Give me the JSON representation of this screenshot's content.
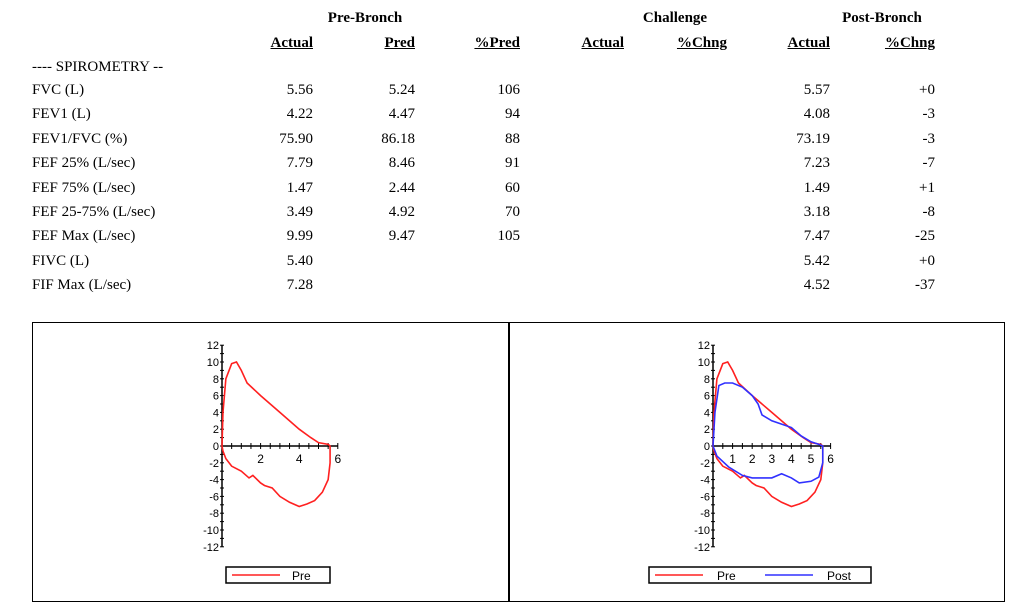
{
  "header": {
    "groups": [
      "Pre-Bronch",
      "Challenge",
      "Post-Bronch"
    ],
    "columns": [
      "Actual",
      "Pred",
      "%Pred",
      "Actual",
      "%Chng",
      "Actual",
      "%Chng"
    ]
  },
  "section_label": "---- SPIROMETRY --",
  "rows": [
    {
      "label": "FVC (L)",
      "cells": [
        "5.56",
        "5.24",
        "106",
        "",
        "",
        "5.57",
        "+0"
      ]
    },
    {
      "label": "FEV1 (L)",
      "cells": [
        "4.22",
        "4.47",
        "94",
        "",
        "",
        "4.08",
        "-3"
      ]
    },
    {
      "label": "FEV1/FVC (%)",
      "cells": [
        "75.90",
        "86.18",
        "88",
        "",
        "",
        "73.19",
        "-3"
      ]
    },
    {
      "label": "FEF 25% (L/sec)",
      "cells": [
        "7.79",
        "8.46",
        "91",
        "",
        "",
        "7.23",
        "-7"
      ]
    },
    {
      "label": "FEF 75% (L/sec)",
      "cells": [
        "1.47",
        "2.44",
        "60",
        "",
        "",
        "1.49",
        "+1"
      ]
    },
    {
      "label": "FEF 25-75% (L/sec)",
      "cells": [
        "3.49",
        "4.92",
        "70",
        "",
        "",
        "3.18",
        "-8"
      ]
    },
    {
      "label": "FEF Max (L/sec)",
      "cells": [
        "9.99",
        "9.47",
        "105",
        "",
        "",
        "7.47",
        "-25"
      ]
    },
    {
      "label": "FIVC (L)",
      "cells": [
        "5.40",
        "",
        "",
        "",
        "",
        "5.42",
        "+0"
      ]
    },
    {
      "label": "FIF Max (L/sec)",
      "cells": [
        "7.28",
        "",
        "",
        "",
        "",
        "4.52",
        "-37"
      ]
    }
  ],
  "chart_data": [
    {
      "type": "line",
      "xlim": [
        0,
        6
      ],
      "ylim": [
        -12,
        12
      ],
      "xticks": [
        "2",
        "4",
        "6"
      ],
      "xtick_values": [
        2,
        4,
        6
      ],
      "yticks": [
        "12",
        "10",
        "8",
        "6",
        "4",
        "2",
        "0",
        "-2",
        "-4",
        "-6",
        "-8",
        "-10",
        "-12"
      ],
      "legend": "bottom",
      "series": [
        {
          "name": "Pre",
          "color": "#ff2020",
          "points": [
            [
              0,
              0
            ],
            [
              0.05,
              4
            ],
            [
              0.2,
              8
            ],
            [
              0.5,
              9.8
            ],
            [
              0.75,
              10
            ],
            [
              1,
              9
            ],
            [
              1.3,
              7.5
            ],
            [
              2,
              6
            ],
            [
              3,
              4
            ],
            [
              4,
              2
            ],
            [
              4.6,
              1
            ],
            [
              5,
              0.4
            ],
            [
              5.5,
              0.2
            ],
            [
              5.6,
              0
            ],
            [
              5.6,
              -2
            ],
            [
              5.5,
              -4
            ],
            [
              5.2,
              -5.5
            ],
            [
              4.8,
              -6.5
            ],
            [
              4.4,
              -6.9
            ],
            [
              4,
              -7.2
            ],
            [
              3.5,
              -6.7
            ],
            [
              3,
              -6
            ],
            [
              2.6,
              -5
            ],
            [
              2.2,
              -4.7
            ],
            [
              2,
              -4.4
            ],
            [
              1.6,
              -3.5
            ],
            [
              1.4,
              -3.8
            ],
            [
              1,
              -3
            ],
            [
              0.5,
              -2.4
            ],
            [
              0.2,
              -1.5
            ],
            [
              0.05,
              -0.6
            ],
            [
              0,
              0
            ]
          ]
        }
      ]
    },
    {
      "type": "line",
      "xlim": [
        0,
        6
      ],
      "ylim": [
        -12,
        12
      ],
      "xticks": [
        "1",
        "2",
        "3",
        "4",
        "5",
        "6"
      ],
      "xtick_values": [
        1,
        2,
        3,
        4,
        5,
        6
      ],
      "yticks": [
        "12",
        "10",
        "8",
        "6",
        "4",
        "2",
        "0",
        "-2",
        "-4",
        "-6",
        "-8",
        "-10",
        "-12"
      ],
      "legend": "bottom",
      "series": [
        {
          "name": "Pre",
          "color": "#ff2020",
          "points": [
            [
              0,
              0
            ],
            [
              0.05,
              4
            ],
            [
              0.2,
              8
            ],
            [
              0.5,
              9.8
            ],
            [
              0.75,
              10
            ],
            [
              1,
              9
            ],
            [
              1.3,
              7.5
            ],
            [
              2,
              6
            ],
            [
              3,
              4
            ],
            [
              4,
              2
            ],
            [
              4.6,
              1
            ],
            [
              5,
              0.4
            ],
            [
              5.5,
              0.2
            ],
            [
              5.6,
              0
            ],
            [
              5.6,
              -2
            ],
            [
              5.5,
              -4
            ],
            [
              5.2,
              -5.5
            ],
            [
              4.8,
              -6.5
            ],
            [
              4.4,
              -6.9
            ],
            [
              4,
              -7.2
            ],
            [
              3.5,
              -6.7
            ],
            [
              3,
              -6
            ],
            [
              2.6,
              -5
            ],
            [
              2.2,
              -4.7
            ],
            [
              2,
              -4.4
            ],
            [
              1.6,
              -3.5
            ],
            [
              1.4,
              -3.8
            ],
            [
              1,
              -3
            ],
            [
              0.5,
              -2.4
            ],
            [
              0.2,
              -1.5
            ],
            [
              0.05,
              -0.6
            ],
            [
              0,
              0
            ]
          ]
        },
        {
          "name": "Post",
          "color": "#3030ff",
          "points": [
            [
              0,
              0
            ],
            [
              0.1,
              4
            ],
            [
              0.3,
              7.2
            ],
            [
              0.6,
              7.5
            ],
            [
              1,
              7.5
            ],
            [
              1.5,
              7
            ],
            [
              2,
              6
            ],
            [
              2.3,
              5
            ],
            [
              2.5,
              3.7
            ],
            [
              3,
              3
            ],
            [
              3.5,
              2.6
            ],
            [
              4,
              2.2
            ],
            [
              4.5,
              1.2
            ],
            [
              5,
              0.5
            ],
            [
              5.4,
              0.2
            ],
            [
              5.6,
              0
            ],
            [
              5.6,
              -2
            ],
            [
              5.4,
              -3.7
            ],
            [
              5,
              -4.2
            ],
            [
              4.4,
              -4.4
            ],
            [
              4,
              -3.8
            ],
            [
              3.5,
              -3.3
            ],
            [
              3,
              -3.8
            ],
            [
              2,
              -3.8
            ],
            [
              1.5,
              -3.5
            ],
            [
              0.8,
              -2.5
            ],
            [
              0.2,
              -1.2
            ],
            [
              0,
              0
            ]
          ]
        }
      ]
    }
  ]
}
